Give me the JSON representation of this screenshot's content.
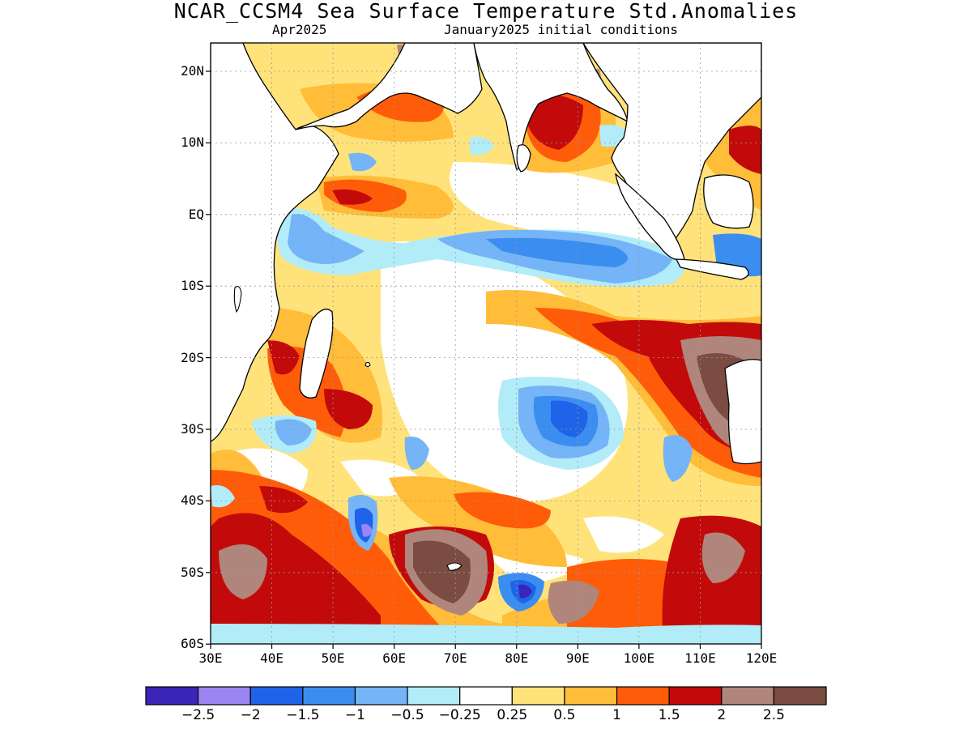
{
  "title": "NCAR_CCSM4 Sea Surface Temperature Std.Anomalies",
  "subtitle_left": "Apr2025",
  "subtitle_right": "January2025 initial conditions",
  "lat_labels": [
    "20N",
    "10N",
    "EQ",
    "10S",
    "20S",
    "30S",
    "40S",
    "50S",
    "60S"
  ],
  "lon_labels": [
    "30E",
    "40E",
    "50E",
    "60E",
    "70E",
    "80E",
    "90E",
    "100E",
    "110E",
    "120E"
  ],
  "colorbar": {
    "colors": [
      "#3b24b8",
      "#9b85f3",
      "#1f63e8",
      "#3c8df0",
      "#74b4f7",
      "#b2ecf8",
      "#ffffff",
      "#ffe37a",
      "#ffbd39",
      "#ff5c0a",
      "#c30a0a",
      "#b0857c",
      "#7a4c42"
    ],
    "tick_labels": [
      "-2.5",
      "-2",
      "-1.5",
      "-1",
      "-0.5",
      "-0.25",
      "0.25",
      "0.5",
      "1",
      "1.5",
      "2",
      "2.5"
    ]
  }
}
